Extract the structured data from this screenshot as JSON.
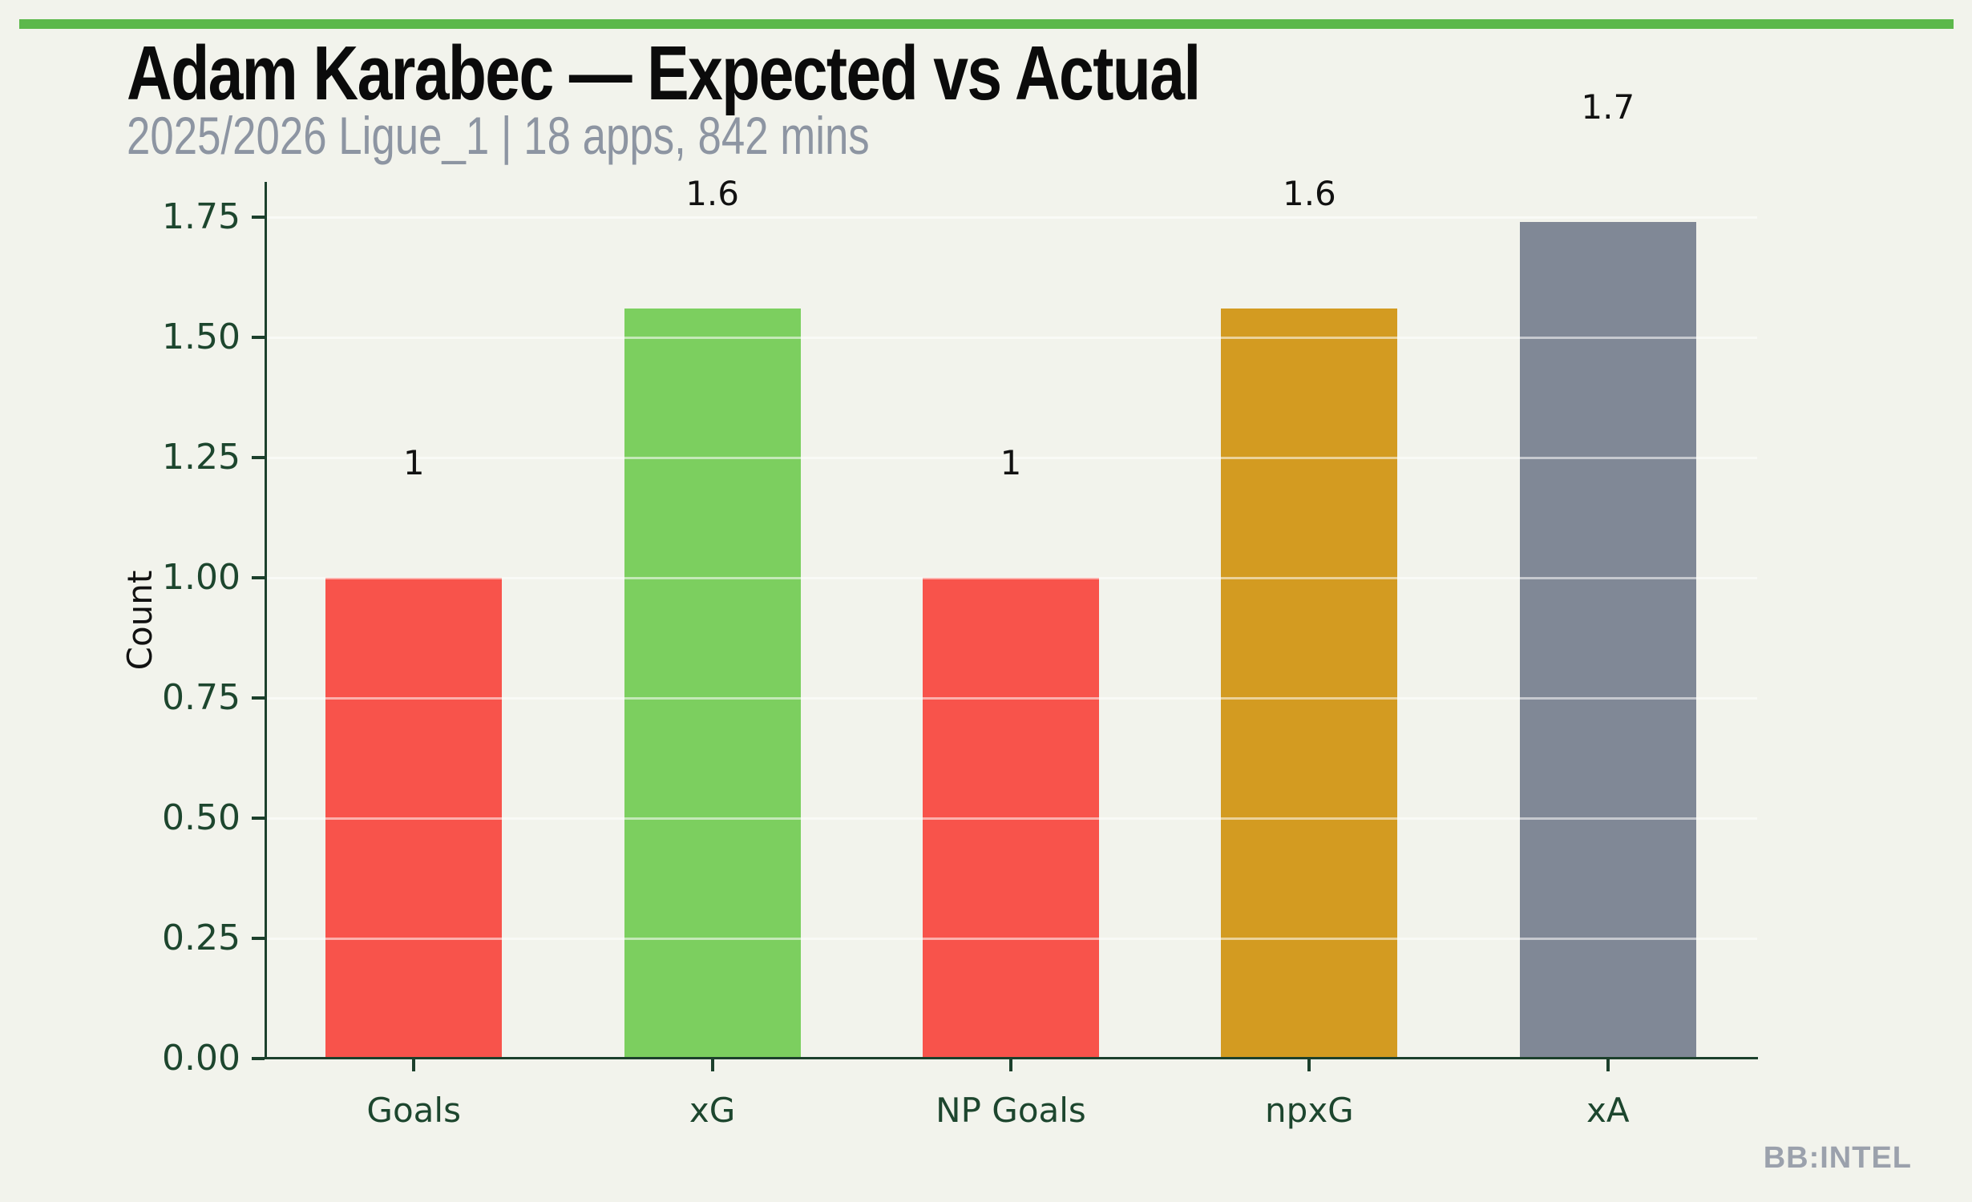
{
  "header": {
    "title": "Adam Karabec — Expected vs Actual",
    "subtitle": "2025/2026 Ligue_1 | 18 apps, 842 mins"
  },
  "watermark": "BB:INTEL",
  "colors": {
    "background": "#f2f3ec",
    "accent_strip": "#5cb84b",
    "axis": "#1c402c",
    "axis_text": "#1d462e",
    "subtitle_text": "#8d95a2",
    "watermark_text": "#9ba1ac"
  },
  "chart_data": {
    "type": "bar",
    "title": "Adam Karabec — Expected vs Actual",
    "subtitle": "2025/2026 Ligue_1 | 18 apps, 842 mins",
    "categories": [
      "Goals",
      "xG",
      "NP Goals",
      "npxG",
      "xA"
    ],
    "values": [
      1.0,
      1.56,
      1.0,
      1.56,
      1.74
    ],
    "value_labels": [
      "1",
      "1.6",
      "1",
      "1.6",
      "1.7"
    ],
    "bar_colors": [
      "#f8534b",
      "#7ccf5f",
      "#f8534b",
      "#d39b21",
      "#808896"
    ],
    "xlabel": "",
    "ylabel": "Count",
    "ylim": [
      0,
      1.82
    ],
    "yticks": [
      "0.00",
      "0.25",
      "0.50",
      "0.75",
      "1.00",
      "1.25",
      "1.50",
      "1.75"
    ],
    "grid": true,
    "legend": "none"
  }
}
